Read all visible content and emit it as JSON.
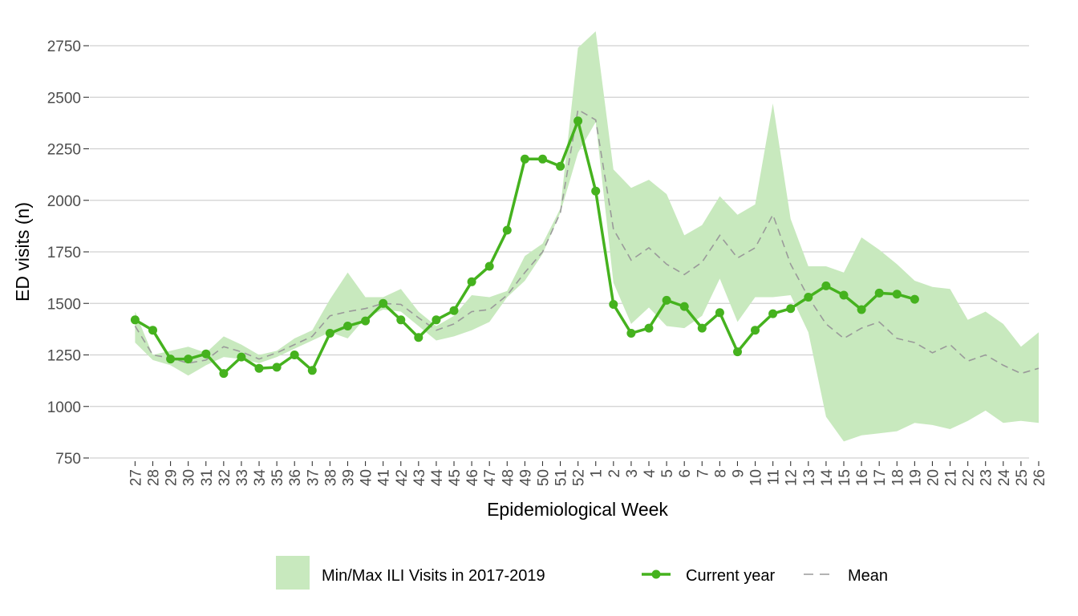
{
  "chart_data": {
    "type": "line",
    "title": "",
    "xlabel": "Epidemiological Week",
    "ylabel": "ED visits (n)",
    "ylim": [
      750,
      2800
    ],
    "yticks": [
      750,
      1000,
      1250,
      1500,
      1750,
      2000,
      2250,
      2500,
      2750
    ],
    "grid": true,
    "legend_position": "bottom",
    "categories": [
      "27",
      "28",
      "29",
      "30",
      "31",
      "32",
      "33",
      "34",
      "35",
      "36",
      "37",
      "38",
      "39",
      "40",
      "41",
      "42",
      "43",
      "44",
      "45",
      "46",
      "47",
      "48",
      "49",
      "50",
      "51",
      "52",
      "1",
      "2",
      "3",
      "4",
      "5",
      "6",
      "7",
      "8",
      "9",
      "10",
      "11",
      "12",
      "13",
      "14",
      "15",
      "16",
      "17",
      "18",
      "19",
      "20",
      "21",
      "22",
      "23",
      "24",
      "25",
      "26"
    ],
    "band": {
      "name": "Min/Max ILI Visits in 2017-2019",
      "color": "#c8e9be",
      "min": [
        1310,
        1225,
        1200,
        1150,
        1200,
        1240,
        1230,
        1210,
        1240,
        1280,
        1320,
        1360,
        1330,
        1430,
        1470,
        1460,
        1390,
        1320,
        1340,
        1370,
        1410,
        1530,
        1610,
        1740,
        1940,
        2230,
        2380,
        1600,
        1400,
        1480,
        1390,
        1380,
        1440,
        1620,
        1410,
        1530,
        1530,
        1540,
        1360,
        950,
        830,
        860,
        870,
        880,
        920,
        910,
        890,
        930,
        980,
        920,
        930,
        920
      ],
      "max": [
        1460,
        1250,
        1270,
        1290,
        1260,
        1340,
        1300,
        1250,
        1270,
        1330,
        1370,
        1520,
        1650,
        1530,
        1530,
        1570,
        1460,
        1390,
        1440,
        1540,
        1530,
        1560,
        1730,
        1790,
        1960,
        2740,
        2820,
        2150,
        2060,
        2100,
        2030,
        1830,
        1880,
        2020,
        1930,
        1980,
        2470,
        1910,
        1680,
        1680,
        1650,
        1820,
        1760,
        1690,
        1610,
        1580,
        1570,
        1420,
        1460,
        1400,
        1290,
        1360
      ]
    },
    "series": [
      {
        "name": "Current year",
        "color": "#45b21e",
        "values": [
          1420,
          1370,
          1230,
          1230,
          1255,
          1160,
          1240,
          1185,
          1190,
          1250,
          1175,
          1355,
          1390,
          1415,
          1500,
          1420,
          1335,
          1420,
          1465,
          1605,
          1680,
          1855,
          2200,
          2200,
          2165,
          2385,
          2045,
          1495,
          1355,
          1380,
          1515,
          1485,
          1380,
          1455,
          1265,
          1370,
          1450,
          1475,
          1530,
          1585,
          1540,
          1470,
          1550,
          1545,
          1520,
          null,
          null,
          null,
          null,
          null,
          null,
          null
        ]
      },
      {
        "name": "Mean",
        "color": "#9a9a9a",
        "values": [
          1390,
          1250,
          1235,
          1210,
          1225,
          1290,
          1265,
          1230,
          1260,
          1300,
          1340,
          1440,
          1460,
          1475,
          1500,
          1495,
          1430,
          1370,
          1400,
          1460,
          1470,
          1540,
          1650,
          1750,
          1940,
          2440,
          2390,
          1860,
          1710,
          1770,
          1690,
          1640,
          1700,
          1830,
          1720,
          1770,
          1930,
          1690,
          1530,
          1400,
          1330,
          1380,
          1410,
          1330,
          1310,
          1260,
          1300,
          1220,
          1250,
          1200,
          1160,
          1185
        ]
      }
    ]
  }
}
